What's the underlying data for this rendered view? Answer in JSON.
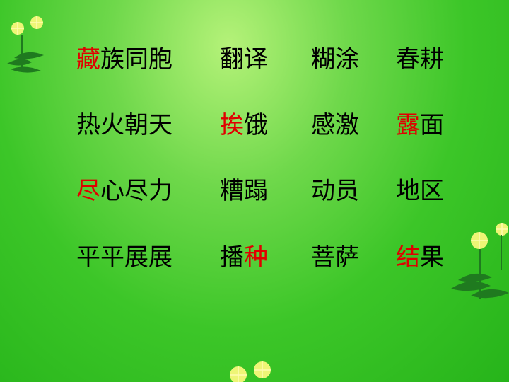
{
  "highlight_color": "#e00000",
  "text_color": "#000000",
  "background_color": "#3cc628",
  "rows": [
    [
      [
        {
          "t": "藏",
          "h": true
        },
        {
          "t": "族同胞",
          "h": false
        }
      ],
      [
        {
          "t": "翻译",
          "h": false
        }
      ],
      [
        {
          "t": "糊涂",
          "h": false
        }
      ],
      [
        {
          "t": "春耕",
          "h": false
        }
      ]
    ],
    [
      [
        {
          "t": "热火朝天",
          "h": false
        }
      ],
      [
        {
          "t": "挨",
          "h": true
        },
        {
          "t": "饿",
          "h": false
        }
      ],
      [
        {
          "t": "感激",
          "h": false
        }
      ],
      [
        {
          "t": "露",
          "h": true
        },
        {
          "t": "面",
          "h": false
        }
      ]
    ],
    [
      [
        {
          "t": "尽",
          "h": true
        },
        {
          "t": "心尽力",
          "h": false
        }
      ],
      [
        {
          "t": "糟蹋",
          "h": false
        }
      ],
      [
        {
          "t": "动员",
          "h": false
        }
      ],
      [
        {
          "t": "地区",
          "h": false
        }
      ]
    ],
    [
      [
        {
          "t": "平平展展",
          "h": false
        }
      ],
      [
        {
          "t": "播",
          "h": false
        },
        {
          "t": "种",
          "h": true
        }
      ],
      [
        {
          "t": "菩萨",
          "h": false
        }
      ],
      [
        {
          "t": "结",
          "h": true
        },
        {
          "t": "果",
          "h": false
        }
      ]
    ]
  ],
  "decorations": [
    "dandelion-icon",
    "dandelion-icon",
    "dandelion-icon"
  ]
}
